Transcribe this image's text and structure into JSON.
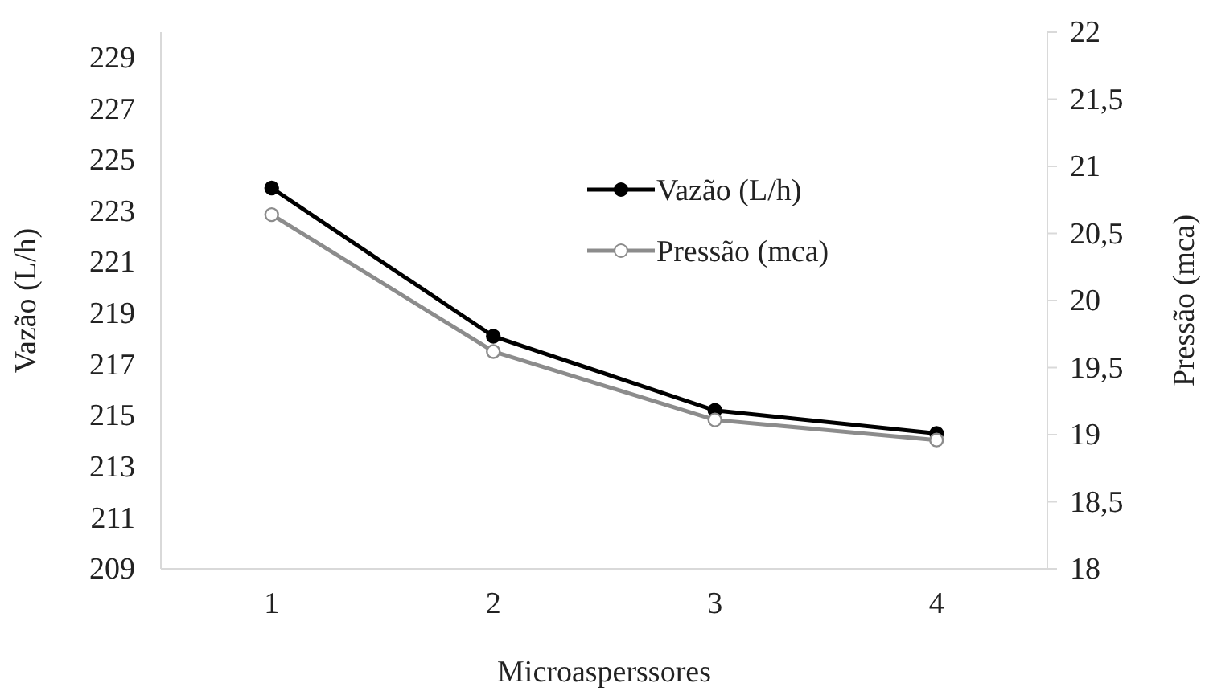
{
  "chart_data": {
    "type": "line",
    "xlabel": "Microasperssores",
    "ylabel": "Vazão (L/h)",
    "y2label": "Pressão (mca)",
    "categories": [
      "1",
      "2",
      "3",
      "4"
    ],
    "series": [
      {
        "name": "Vazão (L/h)",
        "color": "#000000",
        "values": [
          223.9,
          218.1,
          215.2,
          214.3
        ],
        "marker": "circle"
      },
      {
        "name": "Pressão (mca)",
        "color": "#8c8c8c",
        "values": [
          20.64,
          19.62,
          19.11,
          18.96
        ],
        "axis": "y2",
        "marker": "circle"
      }
    ],
    "ylim": [
      209,
      230
    ],
    "yticks": [
      209,
      211,
      213,
      215,
      217,
      219,
      221,
      223,
      225,
      227,
      229
    ],
    "y2lim": [
      18,
      22
    ],
    "y2ticks": [
      {
        "value": 18,
        "label": "18"
      },
      {
        "value": 18.5,
        "label": "18,5"
      },
      {
        "value": 19,
        "label": "19"
      },
      {
        "value": 19.5,
        "label": "19,5"
      },
      {
        "value": 20,
        "label": "20"
      },
      {
        "value": 20.5,
        "label": "20,5"
      },
      {
        "value": 21,
        "label": "21"
      },
      {
        "value": 21.5,
        "label": "21,5"
      },
      {
        "value": 22,
        "label": "22"
      }
    ],
    "legend": "top right",
    "grid": false
  }
}
